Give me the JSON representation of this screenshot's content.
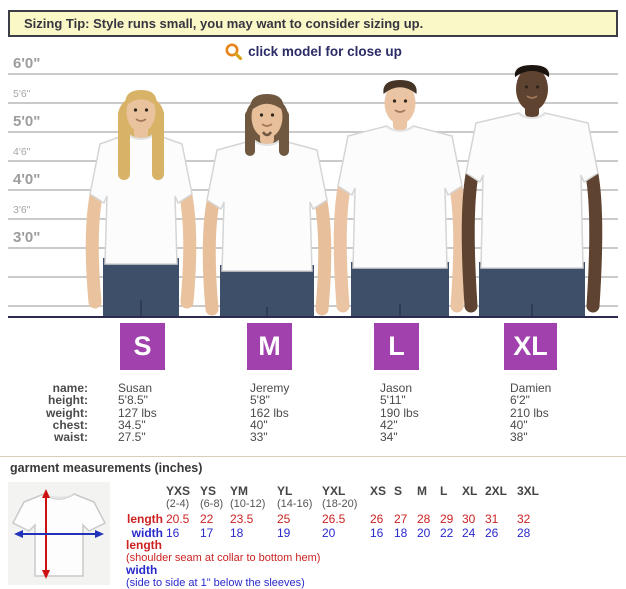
{
  "banner": {
    "text": "Sizing Tip: Style runs small, you may want to consider sizing up."
  },
  "close_up": {
    "label": "click model for close up",
    "icon": "magnifier-icon"
  },
  "height_ruler": {
    "marks": [
      {
        "label": "6'0\"",
        "major": true
      },
      {
        "label": "5'6\"",
        "major": false
      },
      {
        "label": "5'0\"",
        "major": true
      },
      {
        "label": "4'6\"",
        "major": false
      },
      {
        "label": "4'0\"",
        "major": true
      },
      {
        "label": "3'6\"",
        "major": false
      },
      {
        "label": "3'0\"",
        "major": true
      }
    ]
  },
  "stats": {
    "row_labels": [
      "name:",
      "height:",
      "weight:",
      "chest:",
      "waist:"
    ]
  },
  "models": [
    {
      "size": "S",
      "name": "Susan",
      "height": "5'8.5\"",
      "weight": "127 lbs",
      "chest": "34.5\"",
      "waist": "27.5\"",
      "appearance": {
        "skin": "#e9c29e",
        "hair": "#d8b267"
      }
    },
    {
      "size": "M",
      "name": "Jeremy",
      "height": "5'8\"",
      "weight": "162 lbs",
      "chest": "40\"",
      "waist": "33\"",
      "appearance": {
        "skin": "#e7bf9b",
        "hair": "#6f5740"
      }
    },
    {
      "size": "L",
      "name": "Jason",
      "height": "5'11\"",
      "weight": "190 lbs",
      "chest": "42\"",
      "waist": "34\"",
      "appearance": {
        "skin": "#eac4a3",
        "hair": "#463527"
      }
    },
    {
      "size": "XL",
      "name": "Damien",
      "height": "6'2\"",
      "weight": "210 lbs",
      "chest": "40\"",
      "waist": "38\"",
      "appearance": {
        "skin": "#5e4330",
        "hair": "#1c140e"
      }
    }
  ],
  "garment": {
    "heading": "garment measurements (inches)",
    "length_label": "length",
    "width_label": "width",
    "columns": [
      {
        "code": "YXS",
        "range": "(2-4)",
        "length": "20.5",
        "width": "16"
      },
      {
        "code": "YS",
        "range": "(6-8)",
        "length": "22",
        "width": "17"
      },
      {
        "code": "YM",
        "range": "(10-12)",
        "length": "23.5",
        "width": "18"
      },
      {
        "code": "YL",
        "range": "(14-16)",
        "length": "25",
        "width": "19"
      },
      {
        "code": "YXL",
        "range": "(18-20)",
        "length": "26.5",
        "width": "20"
      },
      {
        "code": "XS",
        "range": "",
        "length": "26",
        "width": "16"
      },
      {
        "code": "S",
        "range": "",
        "length": "27",
        "width": "18"
      },
      {
        "code": "M",
        "range": "",
        "length": "28",
        "width": "20"
      },
      {
        "code": "L",
        "range": "",
        "length": "29",
        "width": "22"
      },
      {
        "code": "XL",
        "range": "",
        "length": "30",
        "width": "24"
      },
      {
        "code": "2XL",
        "range": "",
        "length": "31",
        "width": "26"
      },
      {
        "code": "3XL",
        "range": "",
        "length": "32",
        "width": "28"
      }
    ],
    "notes": {
      "length_title": "length",
      "length_text": "(shoulder seam at collar to bottom hem)",
      "width_title": "width",
      "width_text": "(side to side at 1\" below the sleeves)"
    }
  },
  "colors": {
    "size_badge": "#a041ae",
    "banner_bg": "#fbf8c8",
    "banner_border": "#3d3d48",
    "navy_text": "#2b2b66",
    "length_red": "#cc2222",
    "width_blue": "#2929cc",
    "ruler_line": "#cacaca",
    "jeans": "#3e4f6a"
  }
}
